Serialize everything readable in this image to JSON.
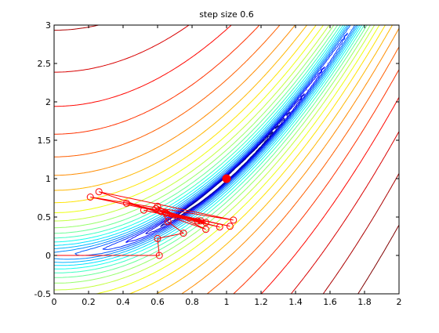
{
  "chart_data": {
    "type": "line",
    "title": "step size 0.6",
    "xlabel": "",
    "ylabel": "",
    "xlim": [
      0,
      2
    ],
    "ylim": [
      -0.5,
      3
    ],
    "xticks": [
      "0",
      "0.2",
      "0.4",
      "0.6",
      "0.8",
      "1",
      "1.2",
      "1.4",
      "1.6",
      "1.8",
      "2"
    ],
    "yticks": [
      "-0.5",
      "0",
      "0.5",
      "1",
      "1.5",
      "2",
      "2.5",
      "3"
    ],
    "grid": false,
    "legend": "none",
    "contour": {
      "function": "rosenbrock",
      "levels": 24,
      "colormap": "jet"
    },
    "minimum_marker": {
      "x": 1.0,
      "y": 1.0,
      "color": "#ff0000"
    },
    "path_color": "#ff0000",
    "path": [
      [
        0.0,
        0.0
      ],
      [
        0.61,
        0.0
      ],
      [
        0.6,
        0.22
      ],
      [
        0.75,
        0.29
      ],
      [
        0.66,
        0.44
      ],
      [
        0.6,
        0.64
      ],
      [
        0.88,
        0.34
      ],
      [
        0.26,
        0.83
      ],
      [
        1.04,
        0.46
      ],
      [
        0.21,
        0.76
      ],
      [
        1.02,
        0.38
      ],
      [
        0.42,
        0.68
      ],
      [
        0.96,
        0.37
      ],
      [
        0.52,
        0.59
      ],
      [
        0.88,
        0.43
      ],
      [
        0.59,
        0.61
      ],
      [
        0.85,
        0.45
      ],
      [
        0.62,
        0.57
      ],
      [
        0.83,
        0.45
      ],
      [
        0.65,
        0.55
      ]
    ]
  }
}
